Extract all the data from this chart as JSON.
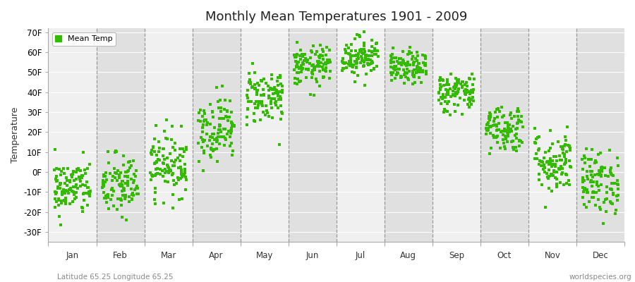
{
  "title": "Monthly Mean Temperatures 1901 - 2009",
  "ylabel": "Temperature",
  "xlabel_bottom_left": "Latitude 65.25 Longitude 65.25",
  "xlabel_bottom_right": "worldspecies.org",
  "legend_label": "Mean Temp",
  "dot_color": "#33bb00",
  "background_color": "#ffffff",
  "stripe_color_light": "#f0f0f0",
  "stripe_color_dark": "#e0e0e0",
  "yticks": [
    -30,
    -20,
    -10,
    0,
    10,
    20,
    30,
    40,
    50,
    60,
    70
  ],
  "ytick_labels": [
    "-30F",
    "-20F",
    "-10F",
    "0F",
    "10F",
    "20F",
    "30F",
    "40F",
    "50F",
    "60F",
    "70F"
  ],
  "ylim": [
    -35,
    72
  ],
  "months": [
    "Jan",
    "Feb",
    "Mar",
    "Apr",
    "May",
    "Jun",
    "Jul",
    "Aug",
    "Sep",
    "Oct",
    "Nov",
    "Dec"
  ],
  "month_means_F": [
    -8,
    -7,
    4,
    22,
    38,
    53,
    58,
    52,
    40,
    22,
    5,
    -5
  ],
  "month_stds_F": [
    7,
    8,
    8,
    8,
    7,
    5,
    5,
    4,
    5,
    6,
    8,
    8
  ],
  "n_years": 109,
  "random_seed": 42,
  "figsize": [
    9.0,
    4.0
  ],
  "dpi": 100
}
